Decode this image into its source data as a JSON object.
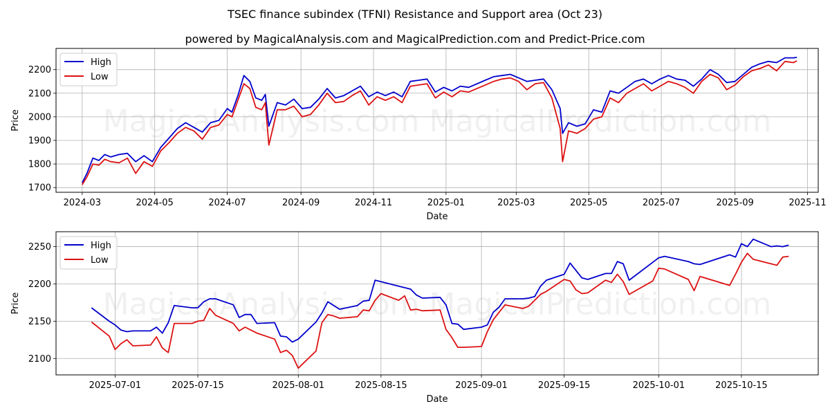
{
  "title": "TSEC finance subindex (TFNI) Resistance and Support area (Oct 23)",
  "subtitle": "powered by MagicalAnalysis.com and MagicalPrediction.com and Predict-Price.com",
  "watermark": "MagicalAnalysis.com   MagicalPrediction.com",
  "colors": {
    "high": "#0000cc",
    "low": "#dd1111",
    "grid": "#b0b0b0"
  },
  "chart_data": [
    {
      "type": "line",
      "xlabel": "Date",
      "ylabel": "Price",
      "xlim": [
        "2024-02-08",
        "2025-11-10"
      ],
      "ylim": [
        1680,
        2290
      ],
      "xticks": [
        "2024-03-01",
        "2024-05-01",
        "2024-07-01",
        "2024-09-01",
        "2024-11-01",
        "2025-01-01",
        "2025-03-01",
        "2025-05-01",
        "2025-07-01",
        "2025-09-01",
        "2025-11-01"
      ],
      "xtick_labels": [
        "2024-03",
        "2024-05",
        "2024-07",
        "2024-09",
        "2024-11",
        "2025-01",
        "2025-03",
        "2025-05",
        "2025-07",
        "2025-09",
        "2025-11"
      ],
      "yticks": [
        1700,
        1800,
        1900,
        2000,
        2100,
        2200
      ],
      "grid": true,
      "legend": "top-left",
      "series": [
        {
          "name": "High",
          "x": [
            "2024-03-01",
            "2024-03-05",
            "2024-03-10",
            "2024-03-15",
            "2024-03-20",
            "2024-03-25",
            "2024-04-01",
            "2024-04-08",
            "2024-04-15",
            "2024-04-22",
            "2024-04-29",
            "2024-05-06",
            "2024-05-13",
            "2024-05-20",
            "2024-05-27",
            "2024-06-03",
            "2024-06-10",
            "2024-06-17",
            "2024-06-24",
            "2024-07-01",
            "2024-07-05",
            "2024-07-10",
            "2024-07-15",
            "2024-07-20",
            "2024-07-25",
            "2024-07-30",
            "2024-08-02",
            "2024-08-05",
            "2024-08-12",
            "2024-08-19",
            "2024-08-26",
            "2024-09-02",
            "2024-09-09",
            "2024-09-16",
            "2024-09-23",
            "2024-09-30",
            "2024-10-07",
            "2024-10-14",
            "2024-10-21",
            "2024-10-28",
            "2024-11-04",
            "2024-11-11",
            "2024-11-18",
            "2024-11-25",
            "2024-12-02",
            "2024-12-09",
            "2024-12-16",
            "2024-12-23",
            "2024-12-30",
            "2025-01-06",
            "2025-01-13",
            "2025-01-20",
            "2025-02-03",
            "2025-02-10",
            "2025-02-17",
            "2025-02-24",
            "2025-03-03",
            "2025-03-10",
            "2025-03-17",
            "2025-03-24",
            "2025-03-31",
            "2025-04-07",
            "2025-04-09",
            "2025-04-14",
            "2025-04-21",
            "2025-04-28",
            "2025-05-05",
            "2025-05-12",
            "2025-05-19",
            "2025-05-26",
            "2025-06-02",
            "2025-06-09",
            "2025-06-16",
            "2025-06-23",
            "2025-06-30",
            "2025-07-07",
            "2025-07-14",
            "2025-07-21",
            "2025-07-28",
            "2025-08-04",
            "2025-08-11",
            "2025-08-18",
            "2025-08-25",
            "2025-09-01",
            "2025-09-08",
            "2025-09-15",
            "2025-09-22",
            "2025-09-29",
            "2025-10-06",
            "2025-10-13",
            "2025-10-20",
            "2025-10-23"
          ],
          "values": [
            1720,
            1760,
            1825,
            1815,
            1840,
            1830,
            1840,
            1845,
            1810,
            1835,
            1810,
            1870,
            1910,
            1950,
            1975,
            1955,
            1935,
            1975,
            1985,
            2035,
            2020,
            2090,
            2175,
            2150,
            2080,
            2070,
            2095,
            1960,
            2060,
            2050,
            2075,
            2035,
            2040,
            2075,
            2120,
            2080,
            2090,
            2110,
            2130,
            2085,
            2105,
            2090,
            2105,
            2085,
            2150,
            2155,
            2160,
            2105,
            2125,
            2110,
            2130,
            2125,
            2155,
            2170,
            2175,
            2180,
            2165,
            2150,
            2155,
            2160,
            2115,
            2035,
            1930,
            1975,
            1960,
            1970,
            2030,
            2020,
            2110,
            2100,
            2125,
            2150,
            2160,
            2140,
            2160,
            2175,
            2160,
            2155,
            2130,
            2160,
            2200,
            2180,
            2145,
            2150,
            2180,
            2210,
            2225,
            2235,
            2230,
            2250,
            2250,
            2252
          ]
        },
        {
          "name": "Low",
          "x": [
            "2024-03-01",
            "2024-03-05",
            "2024-03-10",
            "2024-03-15",
            "2024-03-20",
            "2024-03-25",
            "2024-04-01",
            "2024-04-08",
            "2024-04-15",
            "2024-04-22",
            "2024-04-29",
            "2024-05-06",
            "2024-05-13",
            "2024-05-20",
            "2024-05-27",
            "2024-06-03",
            "2024-06-10",
            "2024-06-17",
            "2024-06-24",
            "2024-07-01",
            "2024-07-05",
            "2024-07-10",
            "2024-07-15",
            "2024-07-20",
            "2024-07-25",
            "2024-07-30",
            "2024-08-02",
            "2024-08-05",
            "2024-08-12",
            "2024-08-19",
            "2024-08-26",
            "2024-09-02",
            "2024-09-09",
            "2024-09-16",
            "2024-09-23",
            "2024-09-30",
            "2024-10-07",
            "2024-10-14",
            "2024-10-21",
            "2024-10-28",
            "2024-11-04",
            "2024-11-11",
            "2024-11-18",
            "2024-11-25",
            "2024-12-02",
            "2024-12-09",
            "2024-12-16",
            "2024-12-23",
            "2024-12-30",
            "2025-01-06",
            "2025-01-13",
            "2025-01-20",
            "2025-02-03",
            "2025-02-10",
            "2025-02-17",
            "2025-02-24",
            "2025-03-03",
            "2025-03-10",
            "2025-03-17",
            "2025-03-24",
            "2025-03-31",
            "2025-04-07",
            "2025-04-09",
            "2025-04-14",
            "2025-04-21",
            "2025-04-28",
            "2025-05-05",
            "2025-05-12",
            "2025-05-19",
            "2025-05-26",
            "2025-06-02",
            "2025-06-09",
            "2025-06-16",
            "2025-06-23",
            "2025-06-30",
            "2025-07-07",
            "2025-07-14",
            "2025-07-21",
            "2025-07-28",
            "2025-08-04",
            "2025-08-11",
            "2025-08-18",
            "2025-08-25",
            "2025-09-01",
            "2025-09-08",
            "2025-09-15",
            "2025-09-22",
            "2025-09-29",
            "2025-10-06",
            "2025-10-13",
            "2025-10-20",
            "2025-10-23"
          ],
          "values": [
            1712,
            1745,
            1800,
            1795,
            1820,
            1810,
            1805,
            1825,
            1760,
            1810,
            1790,
            1855,
            1890,
            1930,
            1955,
            1940,
            1905,
            1955,
            1965,
            2010,
            2000,
            2070,
            2140,
            2120,
            2040,
            2030,
            2060,
            1880,
            2030,
            2030,
            2045,
            2000,
            2010,
            2050,
            2100,
            2060,
            2065,
            2090,
            2110,
            2050,
            2085,
            2070,
            2085,
            2060,
            2130,
            2135,
            2140,
            2080,
            2105,
            2085,
            2110,
            2105,
            2135,
            2150,
            2160,
            2165,
            2150,
            2115,
            2140,
            2145,
            2080,
            1950,
            1810,
            1940,
            1930,
            1950,
            1990,
            2000,
            2080,
            2060,
            2100,
            2120,
            2140,
            2110,
            2130,
            2150,
            2140,
            2125,
            2100,
            2150,
            2180,
            2165,
            2115,
            2135,
            2170,
            2195,
            2205,
            2220,
            2195,
            2235,
            2230,
            2237
          ]
        }
      ]
    },
    {
      "type": "line",
      "xlabel": "Date",
      "ylabel": "Price",
      "xlim": [
        "2025-06-21",
        "2025-10-28"
      ],
      "ylim": [
        2078,
        2270
      ],
      "xticks": [
        "2025-07-01",
        "2025-07-15",
        "2025-08-01",
        "2025-08-15",
        "2025-09-01",
        "2025-09-15",
        "2025-10-01",
        "2025-10-15"
      ],
      "xtick_labels": [
        "2025-07-01",
        "2025-07-15",
        "2025-08-01",
        "2025-08-15",
        "2025-09-01",
        "2025-09-15",
        "2025-10-01",
        "2025-10-15"
      ],
      "yticks": [
        2100,
        2150,
        2200,
        2250
      ],
      "grid": true,
      "legend": "top-left",
      "series": [
        {
          "name": "High",
          "x": [
            "2025-06-27",
            "2025-06-30",
            "2025-07-01",
            "2025-07-02",
            "2025-07-03",
            "2025-07-04",
            "2025-07-07",
            "2025-07-08",
            "2025-07-09",
            "2025-07-10",
            "2025-07-11",
            "2025-07-14",
            "2025-07-15",
            "2025-07-16",
            "2025-07-17",
            "2025-07-18",
            "2025-07-21",
            "2025-07-22",
            "2025-07-23",
            "2025-07-24",
            "2025-07-25",
            "2025-07-28",
            "2025-07-29",
            "2025-07-30",
            "2025-07-31",
            "2025-08-01",
            "2025-08-04",
            "2025-08-05",
            "2025-08-06",
            "2025-08-07",
            "2025-08-08",
            "2025-08-11",
            "2025-08-12",
            "2025-08-13",
            "2025-08-14",
            "2025-08-15",
            "2025-08-18",
            "2025-08-19",
            "2025-08-20",
            "2025-08-21",
            "2025-08-22",
            "2025-08-25",
            "2025-08-26",
            "2025-08-27",
            "2025-08-28",
            "2025-08-29",
            "2025-09-01",
            "2025-09-02",
            "2025-09-03",
            "2025-09-04",
            "2025-09-05",
            "2025-09-08",
            "2025-09-09",
            "2025-09-10",
            "2025-09-11",
            "2025-09-12",
            "2025-09-15",
            "2025-09-16",
            "2025-09-17",
            "2025-09-18",
            "2025-09-19",
            "2025-09-22",
            "2025-09-23",
            "2025-09-24",
            "2025-09-25",
            "2025-09-26",
            "2025-09-30",
            "2025-10-01",
            "2025-10-02",
            "2025-10-06",
            "2025-10-07",
            "2025-10-08",
            "2025-10-13",
            "2025-10-14",
            "2025-10-15",
            "2025-10-16",
            "2025-10-17",
            "2025-10-20",
            "2025-10-21",
            "2025-10-22",
            "2025-10-23"
          ],
          "values": [
            2168,
            2150,
            2145,
            2138,
            2136,
            2137,
            2137,
            2142,
            2134,
            2148,
            2171,
            2168,
            2168,
            2176,
            2180,
            2180,
            2172,
            2155,
            2159,
            2159,
            2147,
            2148,
            2130,
            2129,
            2122,
            2126,
            2149,
            2161,
            2176,
            2171,
            2166,
            2171,
            2177,
            2178,
            2205,
            2203,
            2197,
            2195,
            2193,
            2185,
            2181,
            2182,
            2172,
            2147,
            2146,
            2139,
            2142,
            2145,
            2162,
            2169,
            2180,
            2180,
            2181,
            2183,
            2197,
            2205,
            2213,
            2228,
            2218,
            2208,
            2206,
            2214,
            2214,
            2230,
            2227,
            2205,
            2229,
            2235,
            2237,
            2230,
            2227,
            2226,
            2239,
            2236,
            2254,
            2250,
            2260,
            2250,
            2251,
            2250,
            2252
          ]
        },
        {
          "name": "Low",
          "x": [
            "2025-06-27",
            "2025-06-30",
            "2025-07-01",
            "2025-07-02",
            "2025-07-03",
            "2025-07-04",
            "2025-07-07",
            "2025-07-08",
            "2025-07-09",
            "2025-07-10",
            "2025-07-11",
            "2025-07-14",
            "2025-07-15",
            "2025-07-16",
            "2025-07-17",
            "2025-07-18",
            "2025-07-21",
            "2025-07-22",
            "2025-07-23",
            "2025-07-24",
            "2025-07-25",
            "2025-07-28",
            "2025-07-29",
            "2025-07-30",
            "2025-07-31",
            "2025-08-01",
            "2025-08-04",
            "2025-08-05",
            "2025-08-06",
            "2025-08-07",
            "2025-08-08",
            "2025-08-11",
            "2025-08-12",
            "2025-08-13",
            "2025-08-14",
            "2025-08-15",
            "2025-08-18",
            "2025-08-19",
            "2025-08-20",
            "2025-08-21",
            "2025-08-22",
            "2025-08-25",
            "2025-08-26",
            "2025-08-27",
            "2025-08-28",
            "2025-08-29",
            "2025-09-01",
            "2025-09-02",
            "2025-09-03",
            "2025-09-04",
            "2025-09-05",
            "2025-09-08",
            "2025-09-09",
            "2025-09-10",
            "2025-09-11",
            "2025-09-12",
            "2025-09-15",
            "2025-09-16",
            "2025-09-17",
            "2025-09-18",
            "2025-09-19",
            "2025-09-22",
            "2025-09-23",
            "2025-09-24",
            "2025-09-25",
            "2025-09-26",
            "2025-09-30",
            "2025-10-01",
            "2025-10-02",
            "2025-10-06",
            "2025-10-07",
            "2025-10-08",
            "2025-10-13",
            "2025-10-14",
            "2025-10-15",
            "2025-10-16",
            "2025-10-17",
            "2025-10-20",
            "2025-10-21",
            "2025-10-22",
            "2025-10-23"
          ],
          "values": [
            2149,
            2130,
            2112,
            2120,
            2125,
            2117,
            2118,
            2129,
            2114,
            2108,
            2147,
            2147,
            2150,
            2151,
            2167,
            2158,
            2147,
            2137,
            2142,
            2138,
            2134,
            2126,
            2108,
            2111,
            2104,
            2087,
            2110,
            2148,
            2159,
            2157,
            2154,
            2156,
            2165,
            2164,
            2178,
            2187,
            2178,
            2184,
            2165,
            2166,
            2164,
            2165,
            2139,
            2128,
            2115,
            2115,
            2116,
            2136,
            2152,
            2162,
            2172,
            2167,
            2170,
            2178,
            2186,
            2190,
            2206,
            2204,
            2192,
            2187,
            2188,
            2205,
            2202,
            2213,
            2203,
            2186,
            2204,
            2221,
            2220,
            2206,
            2191,
            2210,
            2198,
            2213,
            2229,
            2241,
            2233,
            2227,
            2225,
            2236,
            2237
          ]
        }
      ]
    }
  ]
}
